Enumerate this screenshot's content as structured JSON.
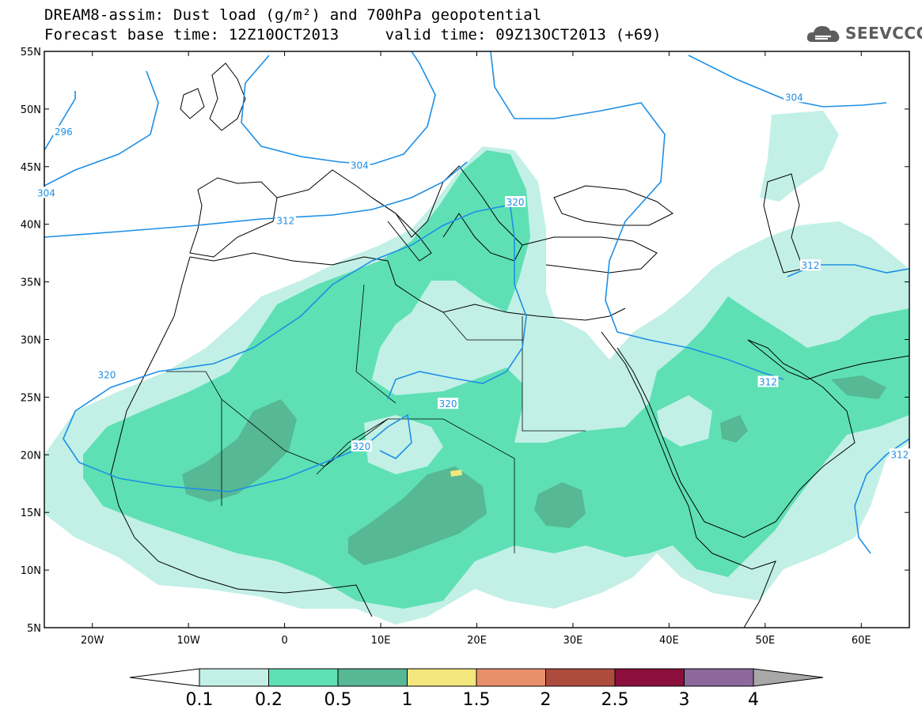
{
  "header": {
    "title_line1": "DREAM8-assim: Dust load (g/m²) and 700hPa geopotential",
    "title_line2": "Forecast base time: 12Z10OCT2013     valid time: 09Z13OCT2013 (+69)"
  },
  "logo": {
    "text": "SEEVCCC",
    "icon": "cloud-logo-icon"
  },
  "map": {
    "lat_labels": [
      {
        "label": "55N",
        "lat": 55
      },
      {
        "label": "50N",
        "lat": 50
      },
      {
        "label": "45N",
        "lat": 45
      },
      {
        "label": "40N",
        "lat": 40
      },
      {
        "label": "35N",
        "lat": 35
      },
      {
        "label": "30N",
        "lat": 30
      },
      {
        "label": "25N",
        "lat": 25
      },
      {
        "label": "20N",
        "lat": 20
      },
      {
        "label": "15N",
        "lat": 15
      },
      {
        "label": "10N",
        "lat": 10
      },
      {
        "label": "5N",
        "lat": 5
      }
    ],
    "lon_labels": [
      {
        "label": "20W",
        "lon": -20
      },
      {
        "label": "10W",
        "lon": -10
      },
      {
        "label": "0",
        "lon": 0
      },
      {
        "label": "10E",
        "lon": 10
      },
      {
        "label": "20E",
        "lon": 20
      },
      {
        "label": "30E",
        "lon": 30
      },
      {
        "label": "40E",
        "lon": 40
      },
      {
        "label": "50E",
        "lon": 50
      },
      {
        "label": "60E",
        "lon": 60
      }
    ],
    "extent": {
      "lon_min": -25,
      "lon_max": 65,
      "lat_min": 5,
      "lat_max": 55
    },
    "contour_labels": [
      {
        "text": "296",
        "lon": -23.0,
        "lat": 48.0
      },
      {
        "text": "304",
        "lon": -24.8,
        "lat": 42.7
      },
      {
        "text": "304",
        "lon": 7.8,
        "lat": 45.1
      },
      {
        "text": "304",
        "lon": 53.0,
        "lat": 51.0
      },
      {
        "text": "312",
        "lon": 0.1,
        "lat": 40.3
      },
      {
        "text": "312",
        "lon": 54.7,
        "lat": 36.4
      },
      {
        "text": "312",
        "lon": 50.3,
        "lat": 26.3
      },
      {
        "text": "312",
        "lon": 64.0,
        "lat": 20.0
      },
      {
        "text": "320",
        "lon": 24.0,
        "lat": 41.9
      },
      {
        "text": "320",
        "lon": -18.5,
        "lat": 26.9
      },
      {
        "text": "320",
        "lon": 17.0,
        "lat": 24.4
      },
      {
        "text": "320",
        "lon": 8.0,
        "lat": 20.7
      }
    ]
  },
  "colorbar": {
    "levels": [
      "0.1",
      "0.2",
      "0.5",
      "1",
      "1.5",
      "2",
      "2.5",
      "3",
      "4"
    ],
    "colors": [
      "#c2f0e6",
      "#5ee0b4",
      "#56b894",
      "#f2e67c",
      "#e8906a",
      "#ad4c3c",
      "#8a0f3c",
      "#8c689c"
    ],
    "under_color": "#ffffff",
    "over_color": "#a8a8a8"
  },
  "colors": {
    "contour": "#1c8fe6",
    "coast": "#000000",
    "dust_low": "#c2f0e6",
    "dust_mid": "#5ee0b4",
    "dust_high": "#56b894",
    "dust_peak": "#f2e67c"
  }
}
